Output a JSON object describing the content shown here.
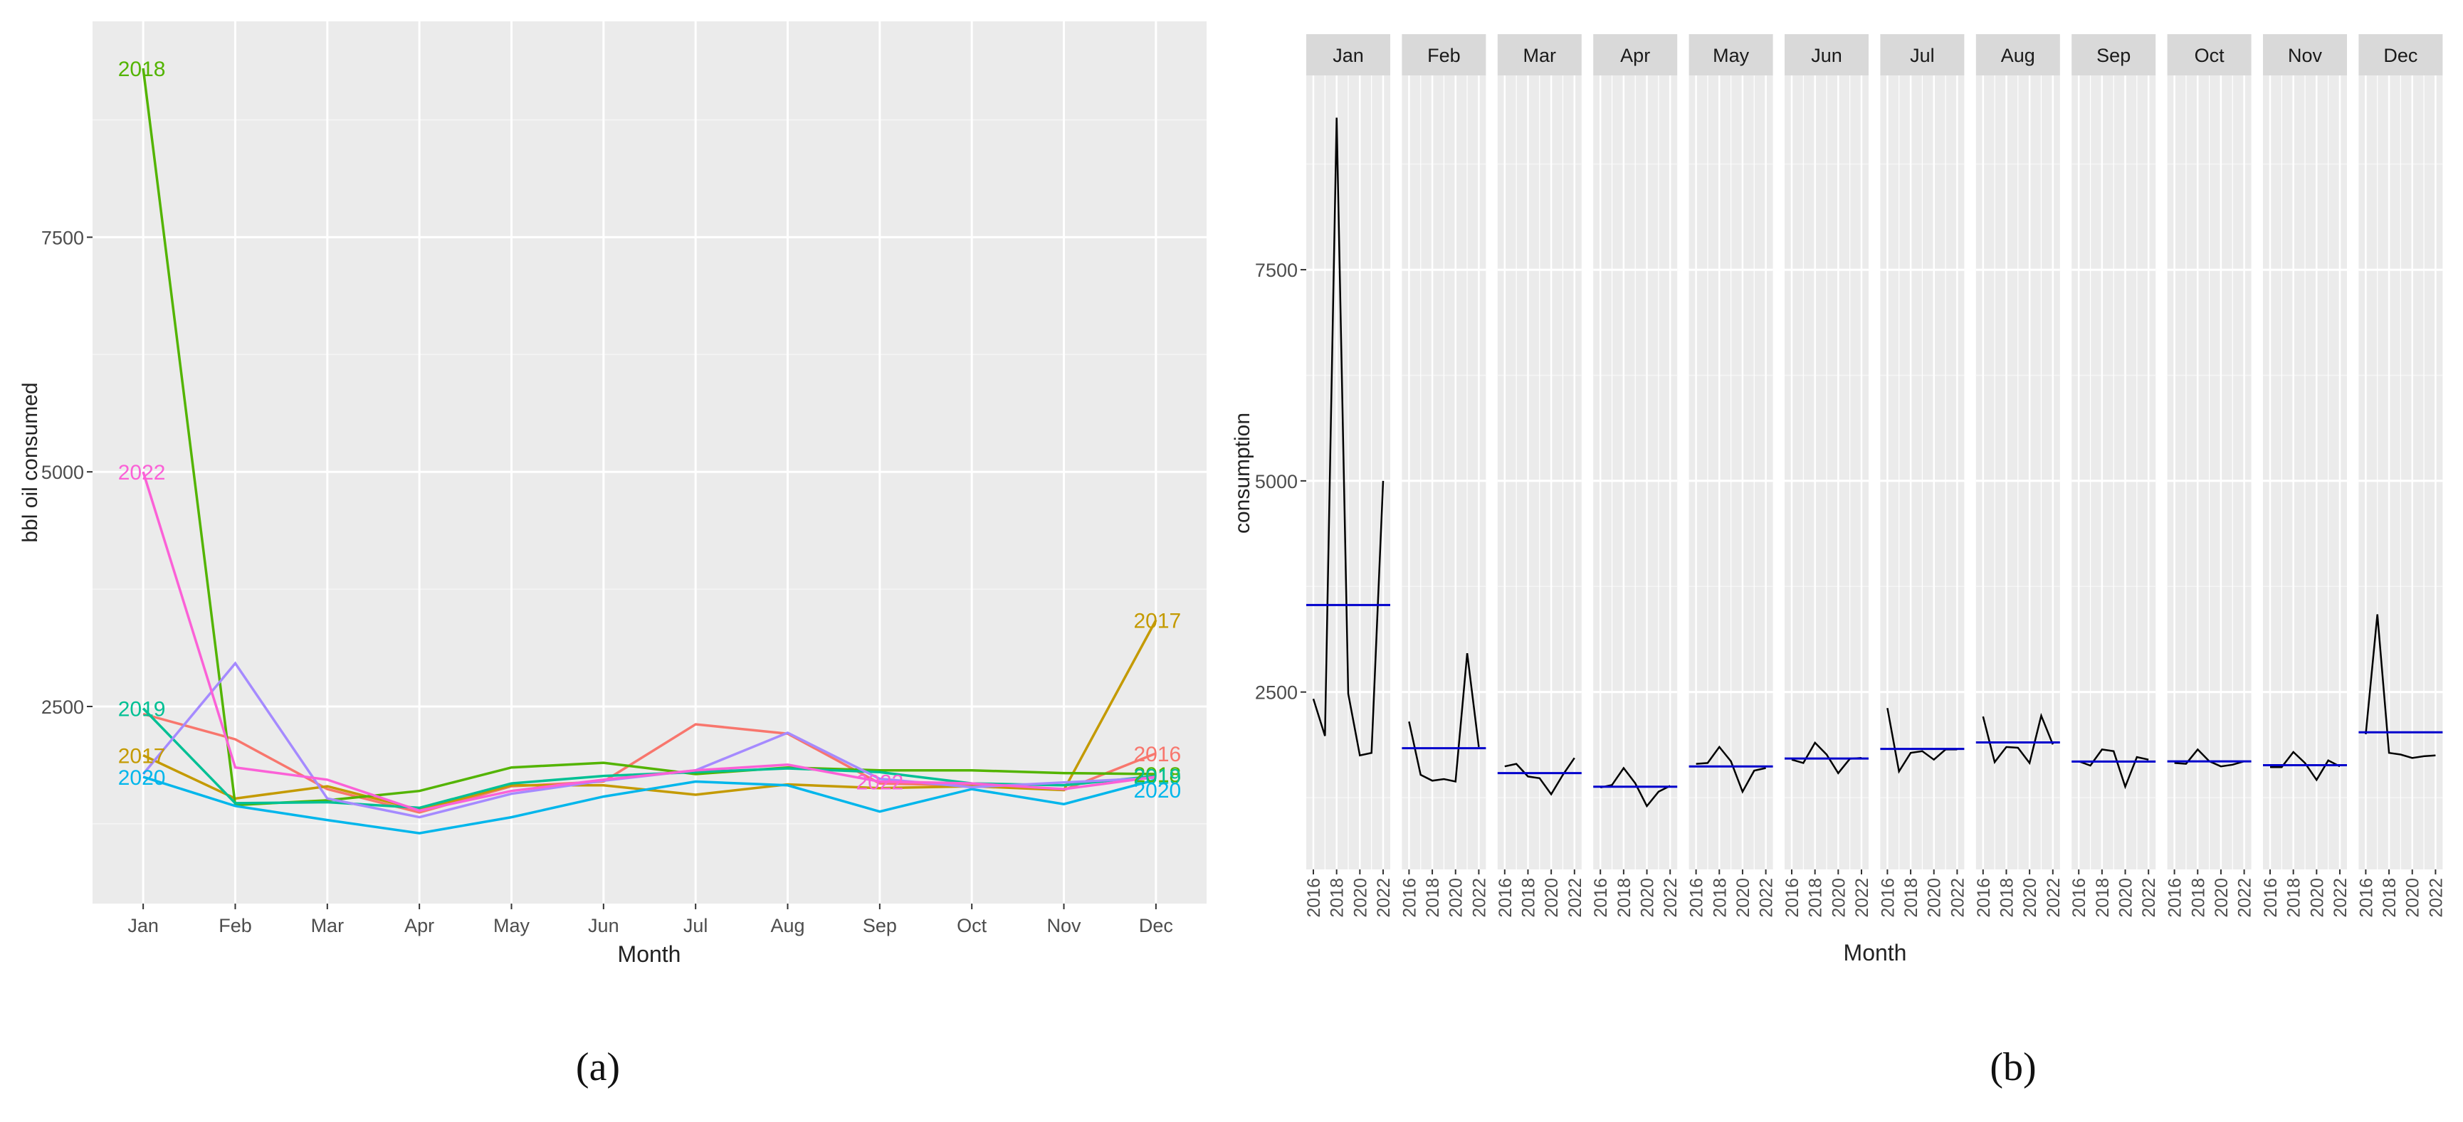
{
  "chart_data": [
    {
      "type": "line",
      "title": "",
      "xlabel": "Month",
      "ylabel": "bbl oil consumed",
      "caption": "(a)",
      "categories": [
        "Jan",
        "Feb",
        "Mar",
        "Apr",
        "May",
        "Jun",
        "Jul",
        "Aug",
        "Sep",
        "Oct",
        "Nov",
        "Dec"
      ],
      "ylim": [
        400,
        9800
      ],
      "yticks": [
        2500,
        5000,
        7500
      ],
      "grid": true,
      "legend": "none",
      "series": [
        {
          "name": "2016",
          "color": "#F8766D",
          "values": [
            2420,
            2150,
            1620,
            1370,
            1650,
            1700,
            2310,
            2210,
            1680,
            1660,
            1610,
            2000
          ]
        },
        {
          "name": "2017",
          "color": "#C49A00",
          "values": [
            1980,
            1520,
            1650,
            1400,
            1660,
            1660,
            1560,
            1670,
            1630,
            1650,
            1610,
            3420
          ]
        },
        {
          "name": "2018",
          "color": "#53B400",
          "values": [
            9300,
            1450,
            1500,
            1600,
            1850,
            1900,
            1780,
            1850,
            1820,
            1820,
            1790,
            1780
          ]
        },
        {
          "name": "2019",
          "color": "#00C094",
          "values": [
            2480,
            1470,
            1480,
            1420,
            1680,
            1760,
            1800,
            1840,
            1800,
            1680,
            1660,
            1760
          ]
        },
        {
          "name": "2020",
          "color": "#00B6EB",
          "values": [
            1750,
            1440,
            1290,
            1150,
            1320,
            1540,
            1700,
            1660,
            1380,
            1620,
            1460,
            1720
          ]
        },
        {
          "name": "2021",
          "color": "#A58AFF",
          "values": [
            1780,
            2960,
            1520,
            1320,
            1570,
            1710,
            1820,
            2220,
            1730,
            1640,
            1690,
            1740
          ]
        },
        {
          "name": "2022",
          "color": "#FB61D7",
          "values": [
            5000,
            1850,
            1720,
            1390,
            1600,
            1720,
            1820,
            1880,
            1700,
            1680,
            1620,
            1750
          ]
        }
      ],
      "end_labels": [
        {
          "text": "2018",
          "series": "2018",
          "at": "Jan"
        },
        {
          "text": "2022",
          "series": "2022",
          "at": "Jan"
        },
        {
          "text": "2019",
          "series": "2019",
          "at": "Jan"
        },
        {
          "text": "2017",
          "series": "2017",
          "at": "Jan"
        },
        {
          "text": "2020",
          "series": "2020",
          "at": "Jan"
        },
        {
          "text": "2017",
          "series": "2017",
          "at": "Dec"
        },
        {
          "text": "2016",
          "series": "2016",
          "at": "Dec"
        },
        {
          "text": "2018",
          "series": "2018",
          "at": "Dec"
        },
        {
          "text": "2019",
          "series": "2019",
          "at": "Dec"
        },
        {
          "text": "2020",
          "series": "2020",
          "at": "Dec"
        },
        {
          "text": "2022",
          "series": "2022",
          "at": "Sep"
        }
      ]
    },
    {
      "type": "line",
      "title": "",
      "xlabel": "Month",
      "ylabel": "consumption",
      "caption": "(b)",
      "facets": [
        "Jan",
        "Feb",
        "Mar",
        "Apr",
        "May",
        "Jun",
        "Jul",
        "Aug",
        "Sep",
        "Oct",
        "Nov",
        "Dec"
      ],
      "x": [
        2016,
        2017,
        2018,
        2019,
        2020,
        2021,
        2022
      ],
      "xticks": [
        "2016",
        "2018",
        "2020",
        "2022"
      ],
      "ylim": [
        400,
        9800
      ],
      "yticks": [
        2500,
        5000,
        7500
      ],
      "line_color": "#000000",
      "mean_color": "#0000CC",
      "panels": [
        {
          "month": "Jan",
          "values": [
            2420,
            1980,
            9300,
            2480,
            1750,
            1780,
            5000
          ],
          "mean": 3530
        },
        {
          "month": "Feb",
          "values": [
            2150,
            1520,
            1450,
            1470,
            1440,
            2960,
            1850
          ],
          "mean": 1835
        },
        {
          "month": "Mar",
          "values": [
            1620,
            1650,
            1500,
            1480,
            1290,
            1520,
            1720
          ],
          "mean": 1540
        },
        {
          "month": "Apr",
          "values": [
            1370,
            1400,
            1600,
            1420,
            1150,
            1320,
            1390
          ],
          "mean": 1379
        },
        {
          "month": "May",
          "values": [
            1650,
            1660,
            1850,
            1680,
            1320,
            1570,
            1600
          ],
          "mean": 1619
        },
        {
          "month": "Jun",
          "values": [
            1700,
            1660,
            1900,
            1760,
            1540,
            1710,
            1720
          ],
          "mean": 1713
        },
        {
          "month": "Jul",
          "values": [
            2310,
            1560,
            1780,
            1800,
            1700,
            1820,
            1820
          ],
          "mean": 1827
        },
        {
          "month": "Aug",
          "values": [
            2210,
            1670,
            1850,
            1840,
            1660,
            2220,
            1880
          ],
          "mean": 1904
        },
        {
          "month": "Sep",
          "values": [
            1680,
            1630,
            1820,
            1800,
            1380,
            1730,
            1700
          ],
          "mean": 1677
        },
        {
          "month": "Oct",
          "values": [
            1660,
            1650,
            1820,
            1680,
            1620,
            1640,
            1680
          ],
          "mean": 1679
        },
        {
          "month": "Nov",
          "values": [
            1610,
            1610,
            1790,
            1660,
            1460,
            1690,
            1620
          ],
          "mean": 1634
        },
        {
          "month": "Dec",
          "values": [
            2000,
            3420,
            1780,
            1760,
            1720,
            1740,
            1750
          ],
          "mean": 2024
        }
      ]
    }
  ]
}
